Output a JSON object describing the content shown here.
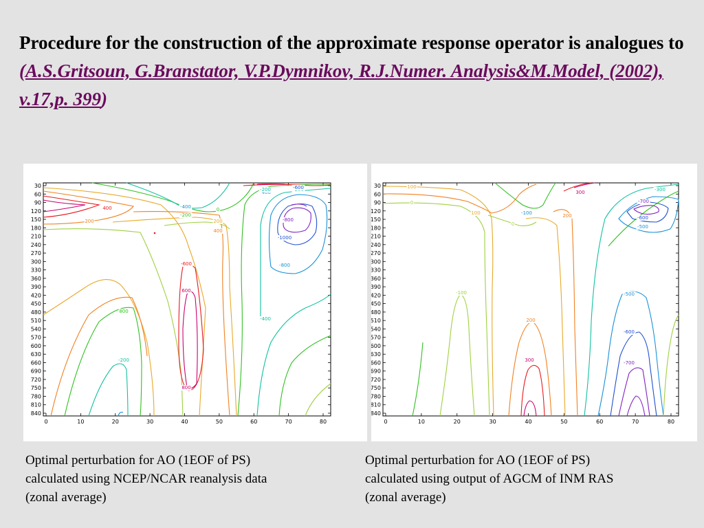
{
  "slide": {
    "title_main": "Procedure for the construction of the approximate response operator is analogues to ",
    "title_open_paren": "(",
    "title_reference": "A.S.Gritsoun, G.Branstator, V.P.Dymnikov, R.J.Numer. Analysis&M.Model, (2002), v.17,p. 399",
    "title_close_paren": ")"
  },
  "panels": [
    {
      "id": "left",
      "caption_lines": [
        "Optimal perturbation for AO (1EOF of PS)",
        "calculated  using NCEP/NCAR reanalysis data",
        "(zonal average)"
      ],
      "y_ticks": [
        "30",
        "60",
        "90",
        "120",
        "150",
        "180",
        "210",
        "240",
        "270",
        "300",
        "330",
        "360",
        "390",
        "420",
        "450",
        "480",
        "510",
        "540",
        "570",
        "600",
        "630",
        "660",
        "690",
        "720",
        "750",
        "780",
        "810",
        "840"
      ],
      "x_ticks": [
        "0",
        "10",
        "20",
        "30",
        "40",
        "50",
        "60",
        "70",
        "80"
      ],
      "contour_labels": [
        "400",
        "200",
        "-400",
        "-200",
        "0",
        "200",
        "400",
        "-200",
        "-600",
        "-800",
        "-1000",
        "-800",
        "-600",
        "600",
        "800",
        "800",
        "-200",
        "-400",
        "-400",
        "-200"
      ]
    },
    {
      "id": "right",
      "caption_lines": [
        "Optimal perturbation for AO (1EOF of PS)",
        "calculated  using output of AGCM of INM RAS",
        "(zonal average)"
      ],
      "y_ticks": [
        "30",
        "60",
        "90",
        "120",
        "150",
        "180",
        "210",
        "240",
        "270",
        "300",
        "330",
        "360",
        "390",
        "420",
        "450",
        "480",
        "510",
        "540",
        "570",
        "600",
        "630",
        "660",
        "690",
        "720",
        "750",
        "780",
        "810",
        "840"
      ],
      "x_ticks": [
        "0",
        "10",
        "20",
        "30",
        "40",
        "50",
        "60",
        "70",
        "80"
      ],
      "contour_labels": [
        "100",
        "0",
        "100",
        "-100",
        "0",
        "200",
        "300",
        "-300",
        "-700",
        "-600",
        "-500",
        "-100",
        "200",
        "300",
        "-500",
        "-600",
        "-700"
      ]
    }
  ],
  "colors": {
    "background": "#e3e3e3",
    "reference_text": "#6a0a5c",
    "contour_palette": [
      "#c8006e",
      "#e8181e",
      "#f08020",
      "#e8a828",
      "#a0d040",
      "#30c020",
      "#10c0a0",
      "#1890d8",
      "#2050d0",
      "#8020c0"
    ]
  }
}
